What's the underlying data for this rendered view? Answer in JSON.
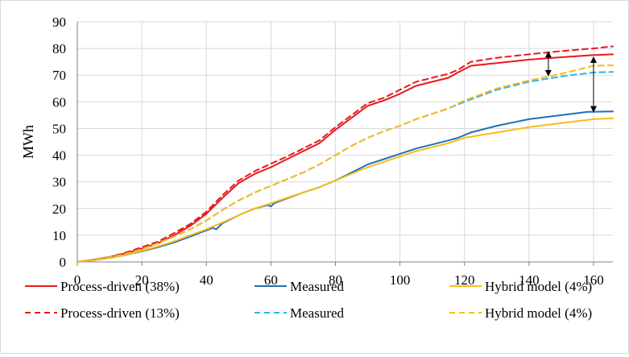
{
  "chart_data": {
    "type": "line",
    "title": "",
    "xlabel": "",
    "ylabel": "MWh",
    "xlim": [
      0,
      166
    ],
    "ylim": [
      0,
      90
    ],
    "xticks": [
      0,
      20,
      40,
      60,
      80,
      100,
      120,
      140,
      160
    ],
    "yticks": [
      0,
      10,
      20,
      30,
      40,
      50,
      60,
      70,
      80,
      90
    ],
    "grid": "vertical and horizontal",
    "legend_position": "bottom, two rows of three entries",
    "series": [
      {
        "name": "Process-driven (38%)",
        "color": "#e8191c",
        "dash": "solid",
        "x": [
          0,
          5,
          10,
          15,
          20,
          25,
          30,
          35,
          40,
          45,
          50,
          55,
          60,
          65,
          70,
          75,
          80,
          85,
          90,
          95,
          100,
          105,
          110,
          115,
          118,
          122,
          130,
          140,
          150,
          160,
          166
        ],
        "y": [
          0,
          0.8,
          1.8,
          3.2,
          5,
          7,
          10,
          13.5,
          18,
          24,
          29.5,
          33,
          35.5,
          38.5,
          41.5,
          44.5,
          49.5,
          54,
          58.5,
          60.5,
          63,
          66,
          67.5,
          69,
          71,
          73.5,
          74.5,
          75.8,
          76.7,
          77.5,
          77.8
        ]
      },
      {
        "name": "Measured",
        "color": "#1f6fb8",
        "dash": "solid",
        "x": [
          0,
          5,
          10,
          15,
          20,
          25,
          30,
          35,
          40,
          42,
          43,
          45,
          50,
          55,
          59,
          60,
          61,
          65,
          70,
          75,
          80,
          85,
          90,
          95,
          100,
          105,
          110,
          115,
          118,
          122,
          130,
          140,
          150,
          158,
          166
        ],
        "y": [
          0,
          0.6,
          1.5,
          2.6,
          4,
          5.5,
          7.3,
          9.5,
          11.8,
          12.8,
          12.2,
          14.5,
          17.5,
          20,
          21.3,
          20.8,
          22,
          23.8,
          26,
          28,
          30.5,
          33.5,
          36.5,
          38.5,
          40.5,
          42.5,
          44,
          45.5,
          46.5,
          48.5,
          51,
          53.5,
          55,
          56.2,
          56.4
        ]
      },
      {
        "name": "Hybrid model (4%)",
        "color": "#f7bb1b",
        "dash": "solid",
        "x": [
          0,
          5,
          10,
          15,
          20,
          25,
          30,
          35,
          40,
          45,
          50,
          55,
          60,
          65,
          70,
          75,
          80,
          85,
          90,
          95,
          100,
          105,
          110,
          115,
          120,
          130,
          140,
          150,
          160,
          166
        ],
        "y": [
          0,
          0.6,
          1.5,
          2.6,
          4.2,
          5.8,
          7.7,
          10,
          12.2,
          14.8,
          17.5,
          20,
          22,
          24,
          26,
          28,
          30.5,
          33,
          35.5,
          37.5,
          39.5,
          41.5,
          43,
          44.5,
          46.5,
          48.5,
          50.5,
          52,
          53.5,
          53.8
        ]
      },
      {
        "name": "Process-driven (13%)",
        "color": "#e8191c",
        "dash": "dashed",
        "x": [
          0,
          5,
          10,
          15,
          20,
          25,
          30,
          35,
          40,
          45,
          50,
          55,
          60,
          65,
          70,
          75,
          80,
          85,
          90,
          95,
          100,
          105,
          110,
          115,
          118,
          122,
          130,
          140,
          150,
          160,
          166
        ],
        "y": [
          0,
          0.8,
          1.8,
          3.5,
          5.5,
          7.6,
          10.8,
          14.2,
          18.8,
          25,
          30.5,
          34,
          36.8,
          39.5,
          42.5,
          45.5,
          50.5,
          55,
          59.5,
          61.5,
          64.5,
          67.5,
          69,
          70.5,
          72,
          75,
          76.5,
          77.8,
          79,
          80,
          80.8
        ]
      },
      {
        "name": "Measured",
        "color": "#2ab5e8",
        "dash": "dashed",
        "x": [
          0,
          5,
          10,
          15,
          20,
          25,
          30,
          35,
          40,
          45,
          50,
          55,
          60,
          65,
          70,
          75,
          80,
          85,
          90,
          95,
          100,
          105,
          110,
          115,
          120,
          130,
          140,
          150,
          160,
          166
        ],
        "y": [
          0,
          0.7,
          1.7,
          3,
          4.8,
          7,
          9.5,
          12.2,
          15.5,
          19.5,
          23,
          26,
          28.5,
          31,
          33.5,
          36.5,
          40,
          43.5,
          46.5,
          49,
          51,
          53.5,
          55.5,
          57.5,
          60,
          64.5,
          67.5,
          69.5,
          71,
          71.2
        ]
      },
      {
        "name": "Hybrid model (4%)",
        "color": "#f7bb1b",
        "dash": "dashed",
        "x": [
          0,
          5,
          10,
          15,
          20,
          25,
          30,
          35,
          40,
          45,
          50,
          55,
          60,
          65,
          70,
          75,
          80,
          85,
          90,
          95,
          100,
          105,
          110,
          115,
          120,
          130,
          140,
          150,
          160,
          166
        ],
        "y": [
          0,
          0.7,
          1.7,
          3,
          4.8,
          7,
          9.5,
          12.2,
          15.5,
          19.5,
          23,
          26,
          28.5,
          31,
          33.5,
          36.5,
          40,
          43.5,
          46.5,
          49,
          51,
          53.5,
          55.5,
          57.5,
          60.5,
          65,
          68,
          70.5,
          73.5,
          73.7
        ]
      }
    ],
    "annotations": [
      {
        "type": "double-arrow",
        "x": 146,
        "y1": 69.5,
        "y2": 79
      },
      {
        "type": "double-arrow",
        "x": 160,
        "y1": 56,
        "y2": 77
      }
    ]
  }
}
